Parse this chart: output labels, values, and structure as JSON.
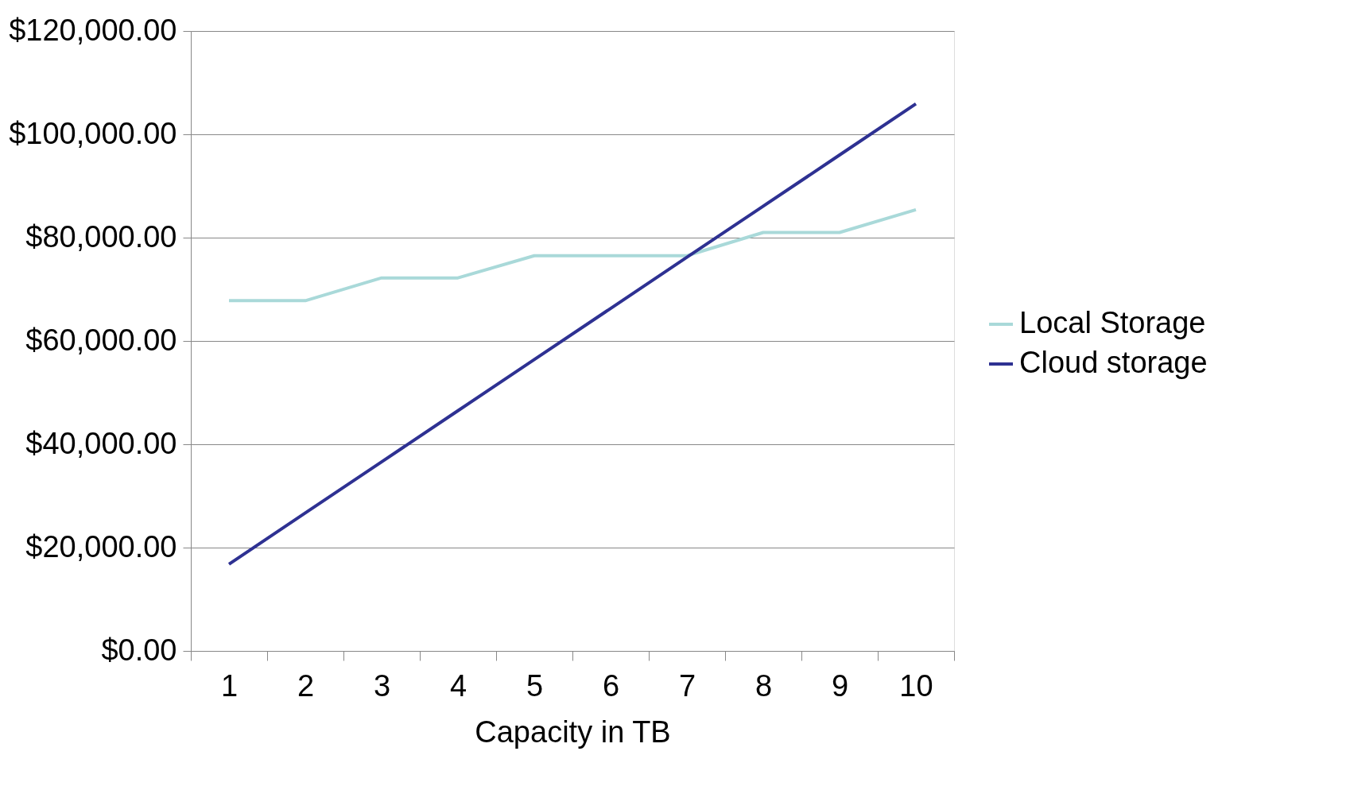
{
  "chart_data": {
    "type": "line",
    "xlabel": "Capacity in TB",
    "categories": [
      "1",
      "2",
      "3",
      "4",
      "5",
      "6",
      "7",
      "8",
      "9",
      "10"
    ],
    "series": [
      {
        "name": "Local Storage",
        "color": "#a9d9d9",
        "values": [
          67800,
          67800,
          72200,
          72200,
          76500,
          76500,
          76500,
          81000,
          81000,
          85400
        ]
      },
      {
        "name": "Cloud storage",
        "color": "#2e3192",
        "values": [
          16800,
          26700,
          36600,
          46500,
          56400,
          66300,
          76200,
          86100,
          96000,
          105900
        ]
      }
    ],
    "ylim": [
      0,
      120000
    ],
    "yticks": [
      {
        "value": 0,
        "label": "$0.00"
      },
      {
        "value": 20000,
        "label": "$20,000.00"
      },
      {
        "value": 40000,
        "label": "$40,000.00"
      },
      {
        "value": 60000,
        "label": "$60,000.00"
      },
      {
        "value": 80000,
        "label": "$80,000.00"
      },
      {
        "value": 100000,
        "label": "$100,000.00"
      },
      {
        "value": 120000,
        "label": "$120,000.00"
      }
    ],
    "grid": "y",
    "legend": "right",
    "marker": "none",
    "line_style": "solid"
  }
}
